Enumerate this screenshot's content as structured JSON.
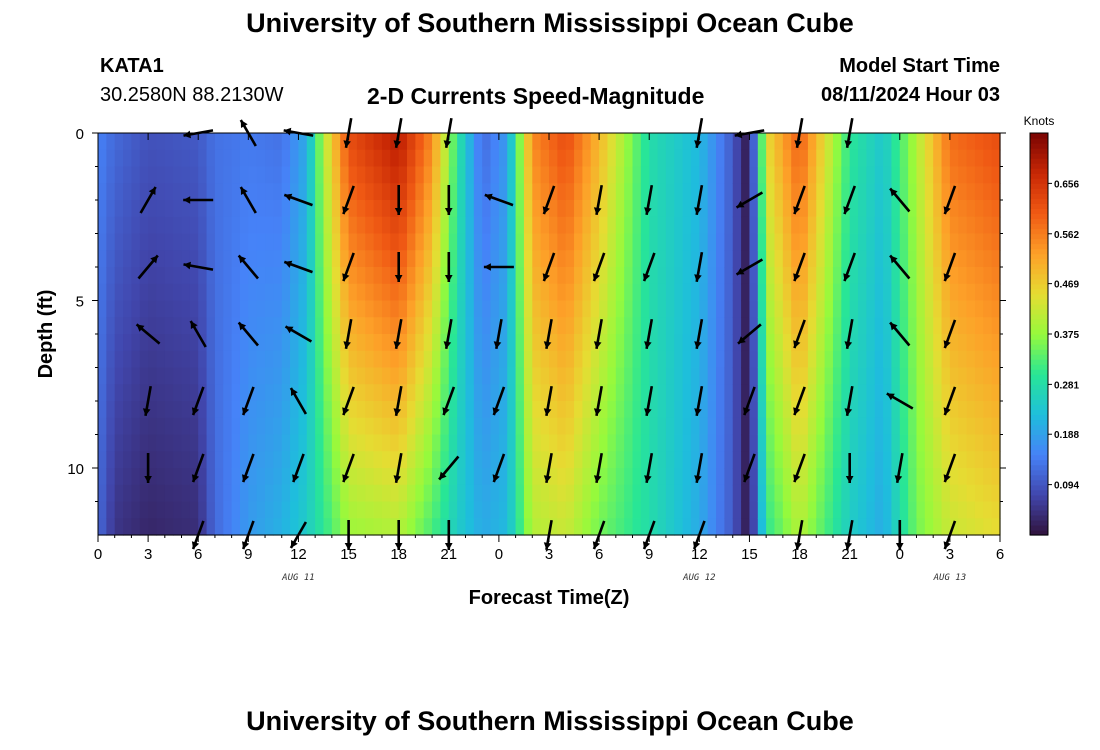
{
  "page": {
    "title": "University of Southern Mississippi Ocean Cube",
    "title_repeat": "University of Southern Mississippi Ocean Cube",
    "station_id": "KATA1",
    "station_coords": "30.2580N  88.2130W",
    "product_title": "2-D Currents Speed-Magnitude",
    "model_start_label": "Model Start Time",
    "model_start_value": "08/11/2024 Hour 03"
  },
  "chart_data": {
    "type": "heatmap",
    "title": "2-D Currents Speed-Magnitude",
    "xlabel": "Forecast Time(Z)",
    "ylabel": "Depth (ft)",
    "x_range_hours": [
      0,
      54
    ],
    "y_range_ft": [
      0,
      12
    ],
    "x_ticks": [
      {
        "h": 0,
        "label": "0"
      },
      {
        "h": 3,
        "label": "3"
      },
      {
        "h": 6,
        "label": "6"
      },
      {
        "h": 9,
        "label": "9"
      },
      {
        "h": 12,
        "label": "12"
      },
      {
        "h": 15,
        "label": "15"
      },
      {
        "h": 18,
        "label": "18"
      },
      {
        "h": 21,
        "label": "21"
      },
      {
        "h": 24,
        "label": "0"
      },
      {
        "h": 27,
        "label": "3"
      },
      {
        "h": 30,
        "label": "6"
      },
      {
        "h": 33,
        "label": "9"
      },
      {
        "h": 36,
        "label": "12"
      },
      {
        "h": 39,
        "label": "15"
      },
      {
        "h": 42,
        "label": "18"
      },
      {
        "h": 45,
        "label": "21"
      },
      {
        "h": 48,
        "label": "0"
      },
      {
        "h": 51,
        "label": "3"
      },
      {
        "h": 54,
        "label": "6"
      }
    ],
    "date_labels": [
      {
        "h": 12,
        "label": "AUG 11"
      },
      {
        "h": 36,
        "label": "AUG 12"
      },
      {
        "h": 51,
        "label": "AUG 13"
      }
    ],
    "y_ticks": [
      {
        "v": 0,
        "label": "0"
      },
      {
        "v": 5,
        "label": "5"
      },
      {
        "v": 10,
        "label": "10"
      }
    ],
    "colorbar": {
      "label": "Knots",
      "range": [
        0.0,
        0.75
      ],
      "ticks": [
        {
          "v": 0.094,
          "label": "0.094"
        },
        {
          "v": 0.188,
          "label": "0.188"
        },
        {
          "v": 0.281,
          "label": "0.281"
        },
        {
          "v": 0.375,
          "label": "0.375"
        },
        {
          "v": 0.469,
          "label": "0.469"
        },
        {
          "v": 0.562,
          "label": "0.562"
        },
        {
          "v": 0.656,
          "label": "0.656"
        }
      ]
    },
    "speed_profile_knots": [
      {
        "h": 0,
        "surface": 0.15,
        "bottom": 0.12
      },
      {
        "h": 1,
        "surface": 0.12,
        "bottom": 0.05
      },
      {
        "h": 3,
        "surface": 0.09,
        "bottom": 0.03
      },
      {
        "h": 6,
        "surface": 0.1,
        "bottom": 0.04
      },
      {
        "h": 7,
        "surface": 0.13,
        "bottom": 0.12
      },
      {
        "h": 9,
        "surface": 0.14,
        "bottom": 0.18
      },
      {
        "h": 11,
        "surface": 0.13,
        "bottom": 0.21
      },
      {
        "h": 12.5,
        "surface": 0.2,
        "bottom": 0.25
      },
      {
        "h": 13.5,
        "surface": 0.4,
        "bottom": 0.3
      },
      {
        "h": 15,
        "surface": 0.62,
        "bottom": 0.38
      },
      {
        "h": 18,
        "surface": 0.7,
        "bottom": 0.4
      },
      {
        "h": 20,
        "surface": 0.55,
        "bottom": 0.32
      },
      {
        "h": 21.5,
        "surface": 0.3,
        "bottom": 0.25
      },
      {
        "h": 23,
        "surface": 0.12,
        "bottom": 0.2
      },
      {
        "h": 24.5,
        "surface": 0.18,
        "bottom": 0.22
      },
      {
        "h": 26,
        "surface": 0.55,
        "bottom": 0.4
      },
      {
        "h": 28,
        "surface": 0.62,
        "bottom": 0.42
      },
      {
        "h": 30,
        "surface": 0.5,
        "bottom": 0.35
      },
      {
        "h": 33,
        "surface": 0.28,
        "bottom": 0.28
      },
      {
        "h": 36,
        "surface": 0.22,
        "bottom": 0.2
      },
      {
        "h": 38,
        "surface": 0.1,
        "bottom": 0.1
      },
      {
        "h": 39,
        "surface": 0.0,
        "bottom": 0.0
      },
      {
        "h": 40,
        "surface": 0.45,
        "bottom": 0.3
      },
      {
        "h": 42,
        "surface": 0.6,
        "bottom": 0.4
      },
      {
        "h": 45,
        "surface": 0.3,
        "bottom": 0.25
      },
      {
        "h": 47,
        "surface": 0.24,
        "bottom": 0.2
      },
      {
        "h": 49,
        "surface": 0.4,
        "bottom": 0.35
      },
      {
        "h": 51,
        "surface": 0.58,
        "bottom": 0.42
      },
      {
        "h": 54,
        "surface": 0.62,
        "bottom": 0.45
      }
    ],
    "vector_rows_ft": [
      0,
      2,
      4,
      6,
      8,
      10,
      12
    ],
    "vector_cols_h": [
      0,
      3,
      6,
      9,
      12,
      15,
      18,
      21,
      24,
      27,
      30,
      33,
      36,
      39,
      42,
      45,
      48,
      51,
      54
    ],
    "vectors_deg": [
      [
        null,
        null,
        260,
        330,
        280,
        190,
        190,
        190,
        null,
        null,
        null,
        null,
        190,
        260,
        190,
        190,
        null,
        null,
        null
      ],
      [
        null,
        30,
        270,
        330,
        290,
        200,
        180,
        180,
        290,
        200,
        190,
        190,
        190,
        240,
        200,
        200,
        320,
        200,
        null
      ],
      [
        null,
        40,
        280,
        320,
        290,
        200,
        180,
        180,
        270,
        200,
        200,
        200,
        190,
        240,
        200,
        200,
        320,
        200,
        null
      ],
      [
        null,
        310,
        330,
        320,
        300,
        190,
        190,
        190,
        190,
        190,
        190,
        190,
        190,
        230,
        200,
        190,
        320,
        200,
        null
      ],
      [
        null,
        190,
        200,
        200,
        330,
        200,
        190,
        200,
        200,
        190,
        190,
        190,
        190,
        200,
        200,
        190,
        300,
        200,
        null
      ],
      [
        null,
        180,
        200,
        200,
        200,
        200,
        190,
        220,
        200,
        190,
        190,
        190,
        190,
        200,
        200,
        180,
        190,
        200,
        null
      ],
      [
        null,
        null,
        200,
        200,
        210,
        180,
        180,
        180,
        null,
        190,
        200,
        200,
        200,
        null,
        190,
        190,
        180,
        200,
        null
      ]
    ]
  }
}
